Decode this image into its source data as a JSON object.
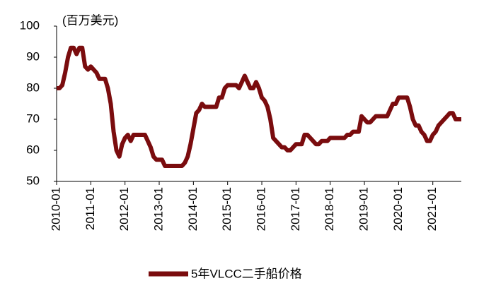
{
  "chart_data": {
    "type": "line",
    "unit_label": "(百万美元)",
    "x": [
      "2010-01",
      "2010-02",
      "2010-03",
      "2010-04",
      "2010-05",
      "2010-06",
      "2010-07",
      "2010-08",
      "2010-09",
      "2010-10",
      "2010-11",
      "2010-12",
      "2011-01",
      "2011-02",
      "2011-03",
      "2011-04",
      "2011-05",
      "2011-06",
      "2011-07",
      "2011-08",
      "2011-09",
      "2011-10",
      "2011-11",
      "2011-12",
      "2012-01",
      "2012-02",
      "2012-03",
      "2012-04",
      "2012-05",
      "2012-06",
      "2012-07",
      "2012-08",
      "2012-09",
      "2012-10",
      "2012-11",
      "2012-12",
      "2013-01",
      "2013-02",
      "2013-03",
      "2013-04",
      "2013-05",
      "2013-06",
      "2013-07",
      "2013-08",
      "2013-09",
      "2013-10",
      "2013-11",
      "2013-12",
      "2014-01",
      "2014-02",
      "2014-03",
      "2014-04",
      "2014-05",
      "2014-06",
      "2014-07",
      "2014-08",
      "2014-09",
      "2014-10",
      "2014-11",
      "2014-12",
      "2015-01",
      "2015-02",
      "2015-03",
      "2015-04",
      "2015-05",
      "2015-06",
      "2015-07",
      "2015-08",
      "2015-09",
      "2015-10",
      "2015-11",
      "2015-12",
      "2016-01",
      "2016-02",
      "2016-03",
      "2016-04",
      "2016-05",
      "2016-06",
      "2016-07",
      "2016-08",
      "2016-09",
      "2016-10",
      "2016-11",
      "2016-12",
      "2017-01",
      "2017-02",
      "2017-03",
      "2017-04",
      "2017-05",
      "2017-06",
      "2017-07",
      "2017-08",
      "2017-09",
      "2017-10",
      "2017-11",
      "2017-12",
      "2018-01",
      "2018-02",
      "2018-03",
      "2018-04",
      "2018-05",
      "2018-06",
      "2018-07",
      "2018-08",
      "2018-09",
      "2018-10",
      "2018-11",
      "2018-12",
      "2019-01",
      "2019-02",
      "2019-03",
      "2019-04",
      "2019-05",
      "2019-06",
      "2019-07",
      "2019-08",
      "2019-09",
      "2019-10",
      "2019-11",
      "2019-12",
      "2020-01",
      "2020-02",
      "2020-03",
      "2020-04",
      "2020-05",
      "2020-06",
      "2020-07",
      "2020-08",
      "2020-09",
      "2020-10",
      "2020-11",
      "2020-12",
      "2021-01",
      "2021-02",
      "2021-03",
      "2021-04",
      "2021-05",
      "2021-06",
      "2021-07",
      "2021-08",
      "2021-09",
      "2021-10",
      "2021-11"
    ],
    "series": [
      {
        "name": "5年VLCC二手船价格",
        "color": "#7a0c0e",
        "values": [
          80,
          80,
          81,
          85,
          90,
          93,
          93,
          91,
          93,
          93,
          87,
          86,
          87,
          86,
          85,
          83,
          83,
          83,
          80,
          75,
          66,
          60,
          58,
          62,
          64,
          65,
          63,
          65,
          65,
          65,
          65,
          65,
          63,
          61,
          58,
          57,
          57,
          57,
          55,
          55,
          55,
          55,
          55,
          55,
          55,
          56,
          58,
          62,
          67,
          72,
          73,
          75,
          74,
          74,
          74,
          74,
          74,
          77,
          77,
          80,
          81,
          81,
          81,
          81,
          80,
          82,
          84,
          82,
          80,
          80,
          82,
          80,
          77,
          76,
          74,
          70,
          64,
          63,
          62,
          61,
          61,
          60,
          60,
          61,
          62,
          62,
          62,
          65,
          65,
          64,
          63,
          62,
          62,
          63,
          63,
          63,
          64,
          64,
          64,
          64,
          64,
          64,
          65,
          65,
          66,
          66,
          66,
          71,
          70,
          69,
          69,
          70,
          71,
          71,
          71,
          71,
          71,
          73,
          75,
          75,
          77,
          77,
          77,
          77,
          74,
          70,
          68,
          68,
          66,
          65,
          63,
          63,
          65,
          66,
          68,
          69,
          70,
          71,
          72,
          72,
          70,
          70,
          70
        ]
      }
    ],
    "xticks": [
      "2010-01",
      "2011-01",
      "2012-01",
      "2013-01",
      "2014-01",
      "2015-01",
      "2016-01",
      "2017-01",
      "2018-01",
      "2019-01",
      "2020-01",
      "2021-01"
    ],
    "ylim": [
      50,
      100
    ],
    "yticks": [
      50,
      60,
      70,
      80,
      90,
      100
    ],
    "grid": false,
    "legend": "bottom"
  }
}
